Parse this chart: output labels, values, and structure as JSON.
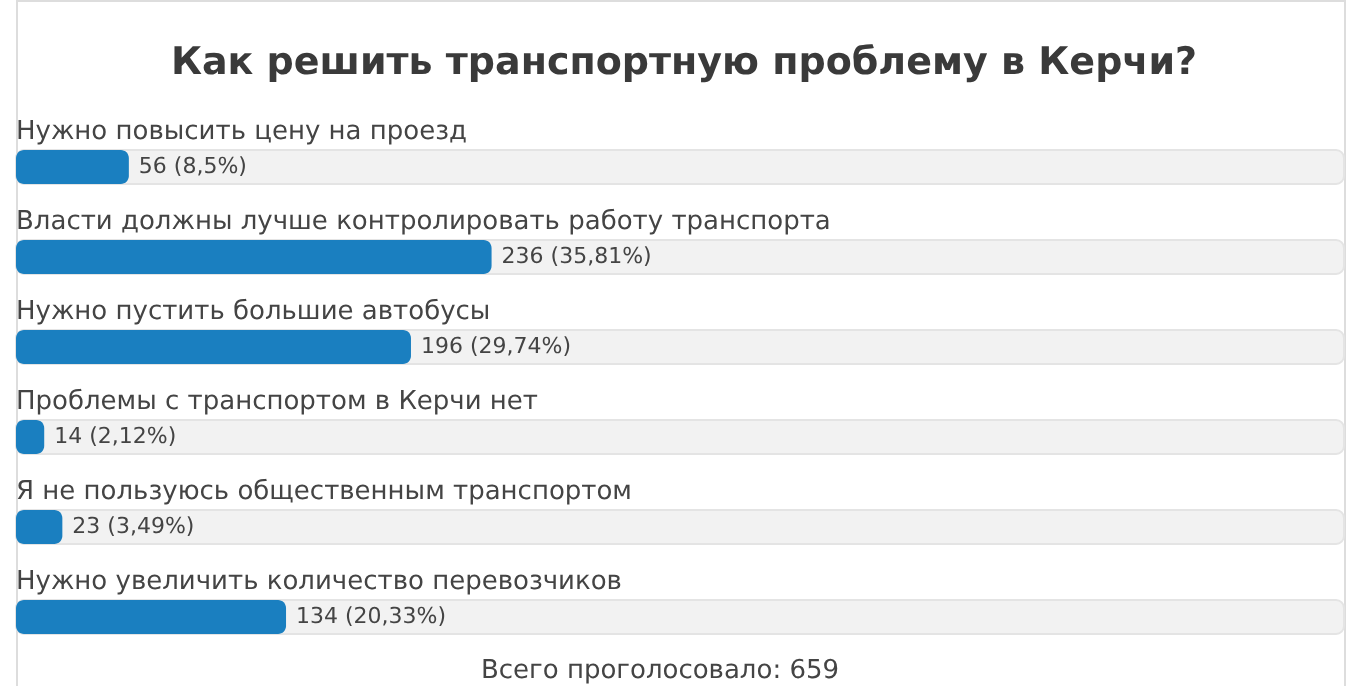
{
  "chart_data": {
    "type": "bar",
    "orientation": "horizontal",
    "title": "Как решить транспортную проблему в Керчи?",
    "categories": [
      "Нужно повысить цену на проезд",
      "Власти должны лучше контролировать работу транспорта",
      "Нужно пустить большие автобусы",
      "Проблемы с транспортом в Керчи нет",
      "Я не пользуюсь общественным транспортом",
      "Нужно увеличить количество перевозчиков"
    ],
    "values": [
      56,
      236,
      196,
      14,
      23,
      134
    ],
    "value_labels": [
      "56 (8,5%)",
      "236 (35,81%)",
      "196 (29,74%)",
      "14 (2,12%)",
      "23 (3,49%)",
      "134 (20,33%)"
    ],
    "color": "#1a7fc0",
    "tick_labels": false,
    "annotations": [
      "Всего проголосовало: 659"
    ]
  }
}
